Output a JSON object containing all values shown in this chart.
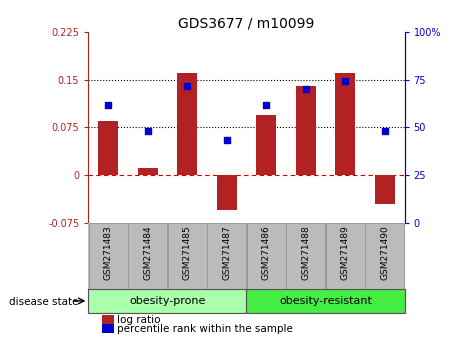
{
  "title": "GDS3677 / m10099",
  "categories": [
    "GSM271483",
    "GSM271484",
    "GSM271485",
    "GSM271487",
    "GSM271486",
    "GSM271488",
    "GSM271489",
    "GSM271490"
  ],
  "bar_values": [
    0.085,
    0.012,
    0.16,
    -0.055,
    0.095,
    0.14,
    0.16,
    -0.045
  ],
  "dot_values": [
    0.11,
    0.07,
    0.14,
    0.055,
    0.11,
    0.135,
    0.148,
    0.07
  ],
  "bar_color": "#b22222",
  "dot_color": "#0000cc",
  "ylim_left": [
    -0.075,
    0.225
  ],
  "ylim_right": [
    0,
    100
  ],
  "yticks_left": [
    -0.075,
    0.0,
    0.075,
    0.15,
    0.225
  ],
  "ytick_labels_left": [
    "-0.075",
    "0",
    "0.075",
    "0.15",
    "0.225"
  ],
  "yticks_right": [
    0,
    25,
    50,
    75,
    100
  ],
  "ytick_labels_right": [
    "0",
    "25",
    "50",
    "75",
    "100%"
  ],
  "hlines_dotted": [
    0.075,
    0.15
  ],
  "hline_zero_color": "#cc0000",
  "group1_label": "obesity-prone",
  "group1_indices": [
    0,
    1,
    2,
    3
  ],
  "group2_label": "obesity-resistant",
  "group2_indices": [
    4,
    5,
    6,
    7
  ],
  "group1_color": "#aaffaa",
  "group2_color": "#44ee44",
  "disease_state_label": "disease state",
  "legend_bar_label": "log ratio",
  "legend_dot_label": "percentile rank within the sample",
  "bar_width": 0.5,
  "background_color": "#ffffff",
  "plot_bg_color": "#ffffff",
  "xticklabel_area_color": "#bbbbbb"
}
